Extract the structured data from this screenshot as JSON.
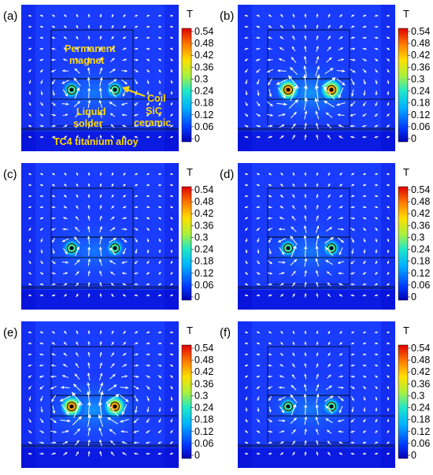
{
  "figure": {
    "colorbar": {
      "unit": "T",
      "ticks": [
        "0.54",
        "0.48",
        "0.42",
        "0.36",
        "0.3",
        "0.24",
        "0.18",
        "0.12",
        "0.06",
        "0"
      ],
      "min": 0,
      "max": 0.54
    },
    "annotations": {
      "magnet_line1": "Permanent",
      "magnet_line2": "magnet",
      "coil": "Coil",
      "solder_line1": "Liquid",
      "solder_line2": "solder",
      "ceramic_line1": "SiC",
      "ceramic_line2": "ceramic",
      "alloy": "TC4 titanium alloy"
    },
    "panels": [
      {
        "label": "(a)",
        "hot": 0.4,
        "arrows": 0.55
      },
      {
        "label": "(b)",
        "hot": 0.95,
        "arrows": 1.0
      },
      {
        "label": "(c)",
        "hot": 0.38,
        "arrows": 0.45
      },
      {
        "label": "(d)",
        "hot": 0.4,
        "arrows": 0.6
      },
      {
        "label": "(e)",
        "hot": 0.95,
        "arrows": 1.0
      },
      {
        "label": "(f)",
        "hot": 0.4,
        "arrows": 0.55
      }
    ],
    "colors": {
      "background_field": "#1a3cff",
      "cold": "#0000c8",
      "hot": "#ff2a00",
      "arrow": "#ffffff",
      "annotation": "#ffd800"
    }
  }
}
